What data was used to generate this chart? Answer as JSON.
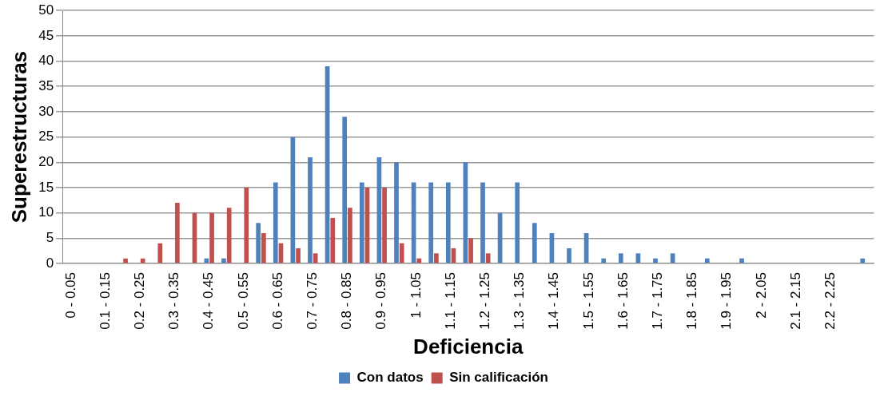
{
  "chart_data": {
    "type": "bar",
    "xlabel": "Deficiencia",
    "ylabel": "Superestructuras",
    "categories": [
      "0 - 0.05",
      null,
      "0.1 - 0.15",
      null,
      "0.2 - 0.25",
      null,
      "0.3 - 0.35",
      null,
      "0.4 - 0.45",
      null,
      "0.5 - 0.55",
      null,
      "0.6 - 0.65",
      null,
      "0.7 - 0.75",
      null,
      "0.8 - 0.85",
      null,
      "0.9 - 0.95",
      null,
      "1 - 1.05",
      null,
      "1.1 - 1.15",
      null,
      "1.2 - 1.25",
      null,
      "1.3 - 1.35",
      null,
      "1.4 - 1.45",
      null,
      "1.5 - 1.55",
      null,
      "1.6 - 1.65",
      null,
      "1.7 - 1.75",
      null,
      "1.8 - 1.85",
      null,
      "1.9 - 1.95",
      null,
      "2 - 2.05",
      null,
      "2.1 - 2.15",
      null,
      "2.2 - 2.25",
      null,
      null
    ],
    "series": [
      {
        "name": "Con datos",
        "color": "#4f81bd",
        "values": [
          0,
          0,
          0,
          0,
          0,
          0,
          0,
          0,
          1,
          1,
          0,
          8,
          16,
          25,
          21,
          39,
          29,
          16,
          21,
          20,
          16,
          16,
          16,
          20,
          16,
          10,
          16,
          8,
          6,
          3,
          6,
          1,
          2,
          2,
          1,
          2,
          0,
          1,
          0,
          1,
          0,
          0,
          0,
          0,
          0,
          0,
          1
        ]
      },
      {
        "name": "Sin calificación",
        "color": "#c0504d",
        "values": [
          0,
          0,
          0,
          1,
          1,
          4,
          12,
          10,
          10,
          11,
          15,
          6,
          4,
          3,
          2,
          9,
          11,
          15,
          15,
          4,
          1,
          2,
          3,
          5,
          2,
          0,
          0,
          0,
          0,
          0,
          0,
          0,
          0,
          0,
          0,
          0,
          0,
          0,
          0,
          0,
          0,
          0,
          0,
          0,
          0,
          0,
          0
        ]
      }
    ],
    "ylim": [
      0,
      50
    ],
    "yticks": [
      0,
      5,
      10,
      15,
      20,
      25,
      30,
      35,
      40,
      45,
      50
    ],
    "grid": "y",
    "legend": "bottom"
  }
}
